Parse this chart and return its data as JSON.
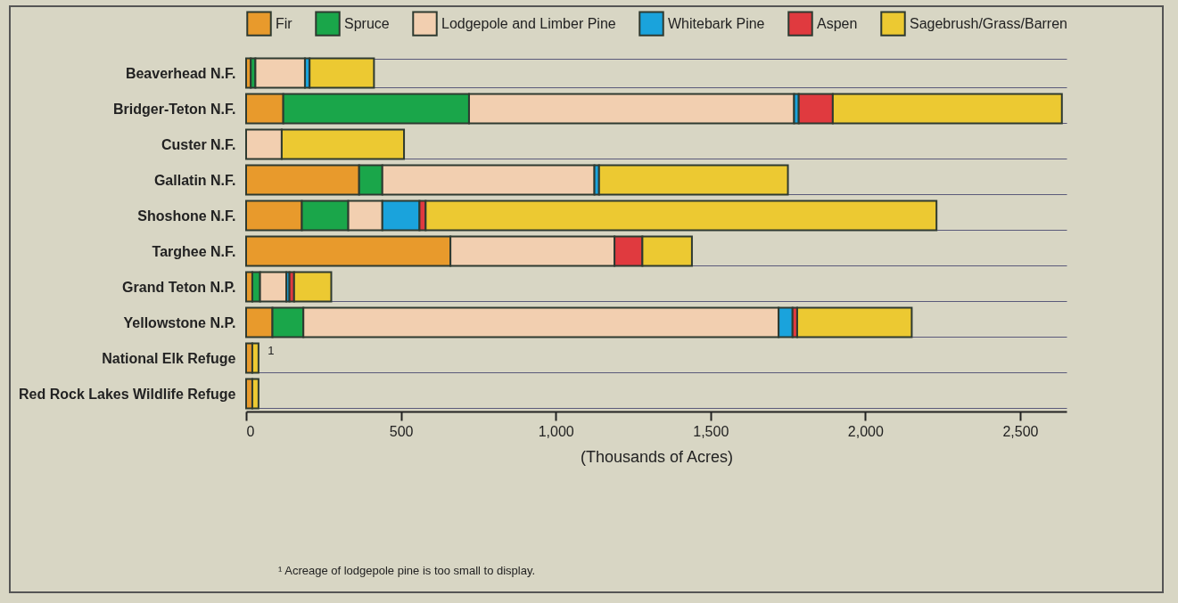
{
  "chart_data": {
    "type": "bar",
    "orientation": "horizontal",
    "stacked": true,
    "xlabel": "(Thousands of Acres)",
    "categories": [
      "Beaverhead N.F.",
      "Bridger-Teton N.F.",
      "Custer N.F.",
      "Gallatin N.F.",
      "Shoshone N.F.",
      "Targhee N.F.",
      "Grand Teton N.P.",
      "Yellowstone N.P.",
      "National Elk Refuge",
      "Red Rock Lakes Wildlife Refuge"
    ],
    "series": [
      {
        "name": "Fir",
        "color": "#e89a2c",
        "values": [
          15,
          120,
          null,
          365,
          180,
          660,
          20,
          85,
          20,
          20
        ]
      },
      {
        "name": "Spruce",
        "color": "#1aa64a",
        "values": [
          15,
          600,
          null,
          75,
          150,
          null,
          25,
          100,
          null,
          null
        ]
      },
      {
        "name": "Lodgepole and Limber Pine",
        "color": "#f2cfb0",
        "values": [
          160,
          1050,
          115,
          685,
          110,
          530,
          85,
          1535,
          null,
          null
        ]
      },
      {
        "name": "Whitebark Pine",
        "color": "#1aa3dc",
        "values": [
          15,
          15,
          null,
          15,
          120,
          null,
          10,
          45,
          null,
          null
        ]
      },
      {
        "name": "Aspen",
        "color": "#e03a3f",
        "values": [
          null,
          110,
          null,
          null,
          20,
          90,
          15,
          15,
          null,
          null
        ]
      },
      {
        "name": "Sagebrush/Grass/Barren",
        "color": "#ecc932",
        "values": [
          208,
          740,
          395,
          610,
          1650,
          160,
          120,
          370,
          20,
          20
        ]
      }
    ],
    "xlim": [
      0,
      2650
    ],
    "xticks": [
      0,
      500,
      {
        "value": 1000,
        "label": "1,000"
      },
      {
        "value": 1500,
        "label": "1,500"
      },
      {
        "value": 2000,
        "label": "2,000"
      },
      {
        "value": 2500,
        "label": "2,500"
      }
    ],
    "grid": "y",
    "legend": "top",
    "annotations": [
      {
        "text": "1",
        "x": 40,
        "y": "National Elk Refuge"
      },
      "¹ Acreage of lodgepole pine is too small to display."
    ]
  }
}
